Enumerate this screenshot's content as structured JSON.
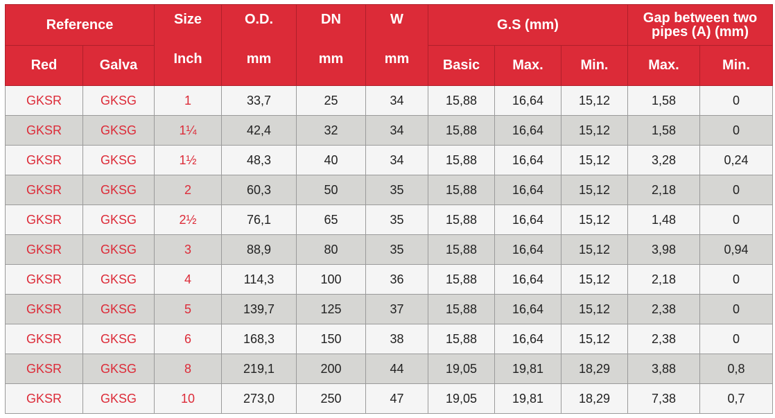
{
  "header": {
    "reference": "Reference",
    "size_top": "Size",
    "size_unit": "Inch",
    "od_top": "O.D.",
    "od_unit": "mm",
    "dn_top": "DN",
    "dn_unit": "mm",
    "w_top": "W",
    "w_unit": "mm",
    "gs": "G.S (mm)",
    "gap": "Gap between two pipes (A) (mm)",
    "red": "Red",
    "galva": "Galva",
    "basic": "Basic",
    "gs_max": "Max.",
    "gs_min": "Min.",
    "gap_max": "Max.",
    "gap_min": "Min."
  },
  "colors": {
    "header_bg": "#dc2b38",
    "accent_text": "#dc2b38",
    "row_odd": "#f5f5f5",
    "row_even": "#d6d6d3"
  },
  "rows": [
    [
      "GKSR",
      "GKSG",
      "1",
      "33,7",
      "25",
      "34",
      "15,88",
      "16,64",
      "15,12",
      "1,58",
      "0"
    ],
    [
      "GKSR",
      "GKSG",
      "1¼",
      "42,4",
      "32",
      "34",
      "15,88",
      "16,64",
      "15,12",
      "1,58",
      "0"
    ],
    [
      "GKSR",
      "GKSG",
      "1½",
      "48,3",
      "40",
      "34",
      "15,88",
      "16,64",
      "15,12",
      "3,28",
      "0,24"
    ],
    [
      "GKSR",
      "GKSG",
      "2",
      "60,3",
      "50",
      "35",
      "15,88",
      "16,64",
      "15,12",
      "2,18",
      "0"
    ],
    [
      "GKSR",
      "GKSG",
      "2½",
      "76,1",
      "65",
      "35",
      "15,88",
      "16,64",
      "15,12",
      "1,48",
      "0"
    ],
    [
      "GKSR",
      "GKSG",
      "3",
      "88,9",
      "80",
      "35",
      "15,88",
      "16,64",
      "15,12",
      "3,98",
      "0,94"
    ],
    [
      "GKSR",
      "GKSG",
      "4",
      "114,3",
      "100",
      "36",
      "15,88",
      "16,64",
      "15,12",
      "2,18",
      "0"
    ],
    [
      "GKSR",
      "GKSG",
      "5",
      "139,7",
      "125",
      "37",
      "15,88",
      "16,64",
      "15,12",
      "2,38",
      "0"
    ],
    [
      "GKSR",
      "GKSG",
      "6",
      "168,3",
      "150",
      "38",
      "15,88",
      "16,64",
      "15,12",
      "2,38",
      "0"
    ],
    [
      "GKSR",
      "GKSG",
      "8",
      "219,1",
      "200",
      "44",
      "19,05",
      "19,81",
      "18,29",
      "3,88",
      "0,8"
    ],
    [
      "GKSR",
      "GKSG",
      "10",
      "273,0",
      "250",
      "47",
      "19,05",
      "19,81",
      "18,29",
      "7,38",
      "0,7"
    ]
  ]
}
